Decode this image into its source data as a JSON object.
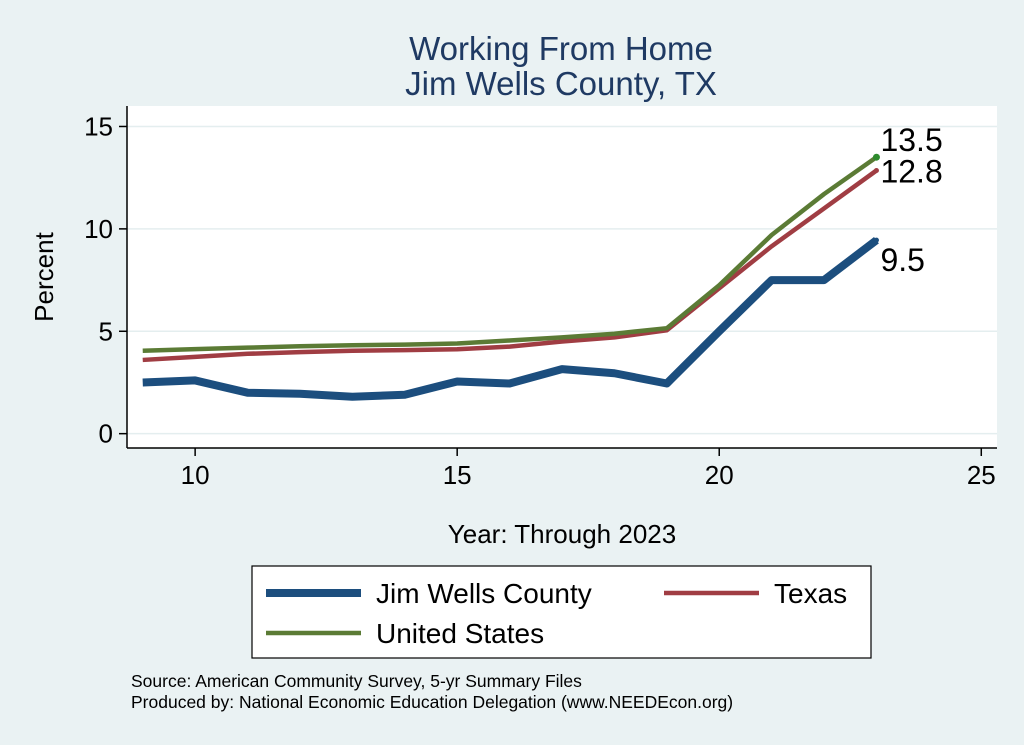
{
  "chart_data": {
    "type": "line",
    "title": [
      "Working From Home",
      "Jim Wells County, TX"
    ],
    "xlabel": "Year: Through 2023",
    "ylabel": "Percent",
    "x": [
      9,
      10,
      11,
      12,
      13,
      14,
      15,
      16,
      17,
      18,
      19,
      20,
      21,
      22,
      23
    ],
    "xlim": [
      8.7,
      25.3
    ],
    "ylim": [
      -0.7,
      16.0
    ],
    "xticks": [
      10,
      15,
      20,
      25
    ],
    "yticks": [
      0,
      5,
      10,
      15
    ],
    "grid": true,
    "series": [
      {
        "name": "Jim Wells County",
        "color": "#1c4e7e",
        "values": [
          2.5,
          2.6,
          2.0,
          1.95,
          1.8,
          1.9,
          2.55,
          2.45,
          3.15,
          2.95,
          2.45,
          5.0,
          7.5,
          7.5,
          9.45
        ],
        "end_label": "9.5"
      },
      {
        "name": "Texas",
        "color": "#a03d43",
        "values": [
          3.6,
          3.75,
          3.9,
          3.98,
          4.05,
          4.08,
          4.12,
          4.25,
          4.5,
          4.7,
          5.05,
          7.1,
          9.15,
          11.0,
          12.85
        ],
        "end_label": "12.8"
      },
      {
        "name": "United States",
        "color": "#5b7b35",
        "values": [
          4.05,
          4.13,
          4.2,
          4.27,
          4.32,
          4.35,
          4.4,
          4.55,
          4.7,
          4.88,
          5.15,
          7.25,
          9.7,
          11.7,
          13.5
        ],
        "end_label": "13.5"
      }
    ],
    "legend": {
      "position": "bottom",
      "items": [
        "Jim Wells County",
        "Texas",
        "United States"
      ]
    },
    "notes": [
      "Source: American Community Survey, 5-yr Summary Files",
      "Produced by: National Economic Education Delegation (www.NEEDEcon.org)"
    ]
  }
}
